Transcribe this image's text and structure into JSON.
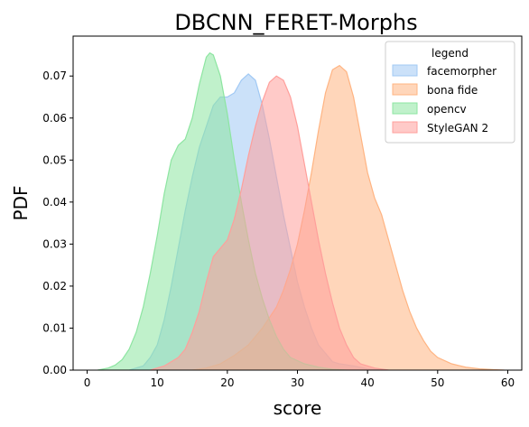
{
  "chart_data": {
    "type": "area",
    "title": "DBCNN_FERET-Morphs",
    "xlabel": "score",
    "ylabel": "PDF",
    "xlim": [
      -2,
      62
    ],
    "ylim": [
      0,
      0.0795
    ],
    "xticks": [
      0,
      10,
      20,
      30,
      40,
      50,
      60
    ],
    "yticks": [
      0.0,
      0.01,
      0.02,
      0.03,
      0.04,
      0.05,
      0.06,
      0.07
    ],
    "ytick_labels": [
      "0.00",
      "0.01",
      "0.02",
      "0.03",
      "0.04",
      "0.05",
      "0.06",
      "0.07"
    ],
    "grid": false,
    "legend": {
      "title": "legend",
      "placement": "top-right",
      "entries": [
        "facemorpher",
        "bona fide",
        "opencv",
        "StyleGAN 2"
      ]
    },
    "series": [
      {
        "name": "facemorpher",
        "fill": "#a1c9f4",
        "stroke": "#a1c9f4",
        "points": [
          [
            6,
            0
          ],
          [
            8,
            0.001
          ],
          [
            9,
            0.003
          ],
          [
            10,
            0.006
          ],
          [
            11,
            0.012
          ],
          [
            12,
            0.02
          ],
          [
            13,
            0.029
          ],
          [
            14,
            0.038
          ],
          [
            15,
            0.046
          ],
          [
            16,
            0.053
          ],
          [
            17,
            0.058
          ],
          [
            18,
            0.063
          ],
          [
            19,
            0.065
          ],
          [
            20,
            0.065
          ],
          [
            21,
            0.066
          ],
          [
            22,
            0.069
          ],
          [
            23,
            0.0705
          ],
          [
            24,
            0.069
          ],
          [
            25,
            0.063
          ],
          [
            26,
            0.055
          ],
          [
            27,
            0.046
          ],
          [
            28,
            0.037
          ],
          [
            29,
            0.029
          ],
          [
            30,
            0.021
          ],
          [
            31,
            0.015
          ],
          [
            32,
            0.01
          ],
          [
            33,
            0.006
          ],
          [
            34,
            0.004
          ],
          [
            35,
            0.002
          ],
          [
            36,
            0.0015
          ],
          [
            38,
            0.001
          ],
          [
            40,
            0.0003
          ],
          [
            42,
            0
          ]
        ]
      },
      {
        "name": "bona fide",
        "fill": "#ffb482",
        "stroke": "#ffb482",
        "points": [
          [
            15,
            0
          ],
          [
            17,
            0.0005
          ],
          [
            19,
            0.0015
          ],
          [
            21,
            0.0035
          ],
          [
            23,
            0.006
          ],
          [
            25,
            0.01
          ],
          [
            27,
            0.015
          ],
          [
            28,
            0.019
          ],
          [
            29,
            0.024
          ],
          [
            30,
            0.03
          ],
          [
            31,
            0.038
          ],
          [
            32,
            0.047
          ],
          [
            33,
            0.057
          ],
          [
            34,
            0.066
          ],
          [
            35,
            0.0715
          ],
          [
            36,
            0.0725
          ],
          [
            37,
            0.071
          ],
          [
            38,
            0.065
          ],
          [
            39,
            0.056
          ],
          [
            40,
            0.047
          ],
          [
            41,
            0.041
          ],
          [
            42,
            0.037
          ],
          [
            43,
            0.031
          ],
          [
            44,
            0.025
          ],
          [
            45,
            0.019
          ],
          [
            46,
            0.014
          ],
          [
            47,
            0.01
          ],
          [
            48,
            0.007
          ],
          [
            49,
            0.0045
          ],
          [
            50,
            0.003
          ],
          [
            52,
            0.0015
          ],
          [
            54,
            0.0007
          ],
          [
            56,
            0.0003
          ],
          [
            58,
            0.0001
          ],
          [
            59.5,
            0
          ]
        ]
      },
      {
        "name": "opencv",
        "fill": "#8de5a1",
        "stroke": "#8de5a1",
        "points": [
          [
            1.5,
            0
          ],
          [
            3,
            0.0005
          ],
          [
            4,
            0.0012
          ],
          [
            5,
            0.0025
          ],
          [
            6,
            0.005
          ],
          [
            7,
            0.009
          ],
          [
            8,
            0.015
          ],
          [
            9,
            0.023
          ],
          [
            10,
            0.032
          ],
          [
            11,
            0.042
          ],
          [
            12,
            0.05
          ],
          [
            13,
            0.0535
          ],
          [
            14,
            0.055
          ],
          [
            15,
            0.06
          ],
          [
            16,
            0.068
          ],
          [
            17,
            0.0745
          ],
          [
            17.5,
            0.0755
          ],
          [
            18,
            0.075
          ],
          [
            19,
            0.07
          ],
          [
            20,
            0.061
          ],
          [
            21,
            0.05
          ],
          [
            22,
            0.04
          ],
          [
            23,
            0.031
          ],
          [
            24,
            0.023
          ],
          [
            25,
            0.017
          ],
          [
            26,
            0.012
          ],
          [
            27,
            0.008
          ],
          [
            28,
            0.005
          ],
          [
            29,
            0.003
          ],
          [
            31,
            0.0015
          ],
          [
            33,
            0.0007
          ],
          [
            35,
            0.0002
          ],
          [
            37,
            0
          ]
        ]
      },
      {
        "name": "StyleGAN 2",
        "fill": "#ff9f9b",
        "stroke": "#ff9f9b",
        "points": [
          [
            9,
            0
          ],
          [
            11,
            0.001
          ],
          [
            13,
            0.003
          ],
          [
            14,
            0.005
          ],
          [
            15,
            0.009
          ],
          [
            16,
            0.014
          ],
          [
            17,
            0.021
          ],
          [
            18,
            0.027
          ],
          [
            19,
            0.029
          ],
          [
            20,
            0.031
          ],
          [
            21,
            0.036
          ],
          [
            22,
            0.043
          ],
          [
            23,
            0.051
          ],
          [
            24,
            0.058
          ],
          [
            25,
            0.064
          ],
          [
            26,
            0.0685
          ],
          [
            27,
            0.07
          ],
          [
            28,
            0.069
          ],
          [
            29,
            0.065
          ],
          [
            30,
            0.058
          ],
          [
            31,
            0.049
          ],
          [
            32,
            0.04
          ],
          [
            33,
            0.031
          ],
          [
            34,
            0.023
          ],
          [
            35,
            0.016
          ],
          [
            36,
            0.01
          ],
          [
            37,
            0.006
          ],
          [
            38,
            0.003
          ],
          [
            39,
            0.0015
          ],
          [
            41,
            0.0005
          ],
          [
            43,
            0
          ]
        ]
      }
    ]
  }
}
